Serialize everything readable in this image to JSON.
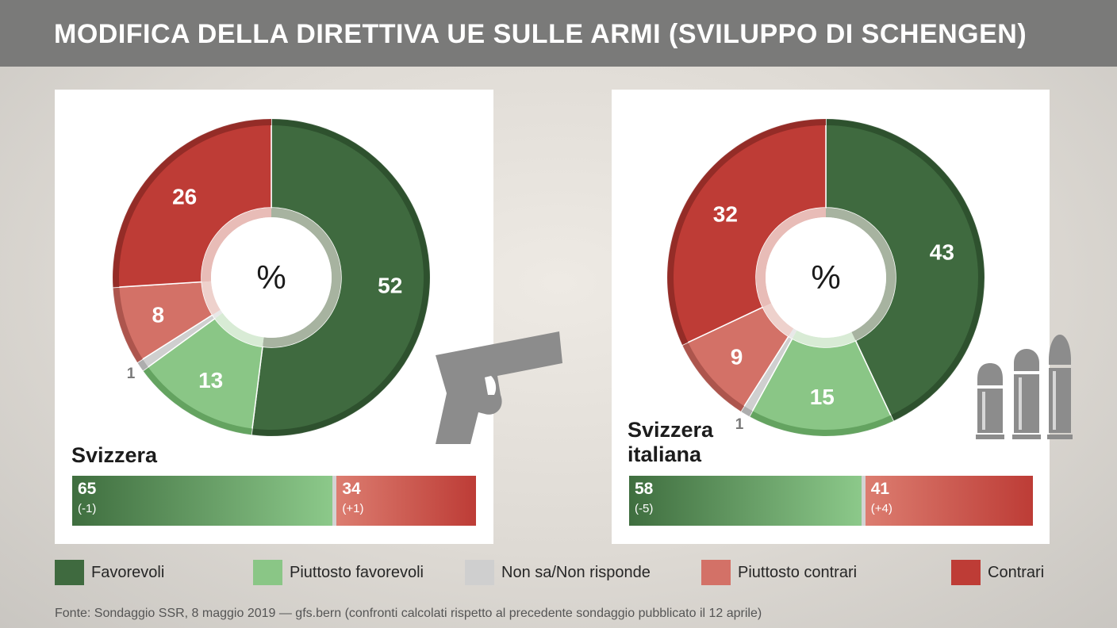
{
  "title": "MODIFICA DELLA DIRETTIVA UE SULLE ARMI (SVILUPPO DI SCHENGEN)",
  "colors": {
    "favorevoli": "#3f6a3f",
    "piuttosto_favorevoli": "#8ac686",
    "non_sa": "#cfcfcf",
    "piuttosto_contrari": "#d37167",
    "contrari": "#be3c36"
  },
  "icons": [
    "gun-icon",
    "bullets-icon"
  ],
  "chart_data": [
    {
      "type": "pie",
      "style": "donut",
      "center_label": "%",
      "region": "Svizzera",
      "slices": [
        {
          "name": "Favorevoli",
          "value": 52,
          "label": "52"
        },
        {
          "name": "Piuttosto favorevoli",
          "value": 13,
          "label": "13"
        },
        {
          "name": "Non sa/Non risponde",
          "value": 1,
          "label": "1"
        },
        {
          "name": "Piuttosto contrari",
          "value": 8,
          "label": "8"
        },
        {
          "name": "Contrari",
          "value": 26,
          "label": "26"
        }
      ],
      "summary_bar": {
        "yes": {
          "value": 65,
          "label": "65",
          "delta": "(-1)"
        },
        "no": {
          "value": 34,
          "label": "34",
          "delta": "(+1)"
        }
      }
    },
    {
      "type": "pie",
      "style": "donut",
      "center_label": "%",
      "region": "Svizzera italiana",
      "slices": [
        {
          "name": "Favorevoli",
          "value": 43,
          "label": "43"
        },
        {
          "name": "Piuttosto favorevoli",
          "value": 15,
          "label": "15"
        },
        {
          "name": "Non sa/Non risponde",
          "value": 1,
          "label": "1"
        },
        {
          "name": "Piuttosto contrari",
          "value": 9,
          "label": "9"
        },
        {
          "name": "Contrari",
          "value": 32,
          "label": "32"
        }
      ],
      "summary_bar": {
        "yes": {
          "value": 58,
          "label": "58",
          "delta": "(-5)"
        },
        "no": {
          "value": 41,
          "label": "41",
          "delta": "(+4)"
        }
      }
    }
  ],
  "legend": [
    {
      "label": "Favorevoli",
      "color": "#3f6a3f"
    },
    {
      "label": "Piuttosto favorevoli",
      "color": "#8ac686"
    },
    {
      "label": "Non sa/Non risponde",
      "color": "#cfcfcf"
    },
    {
      "label": "Piuttosto contrari",
      "color": "#d37167"
    },
    {
      "label": "Contrari",
      "color": "#be3c36"
    }
  ],
  "source": "Fonte: Sondaggio SSR, 8 maggio 2019 — gfs.bern (confronti calcolati rispetto al precedente sondaggio pubblicato il 12 aprile)"
}
